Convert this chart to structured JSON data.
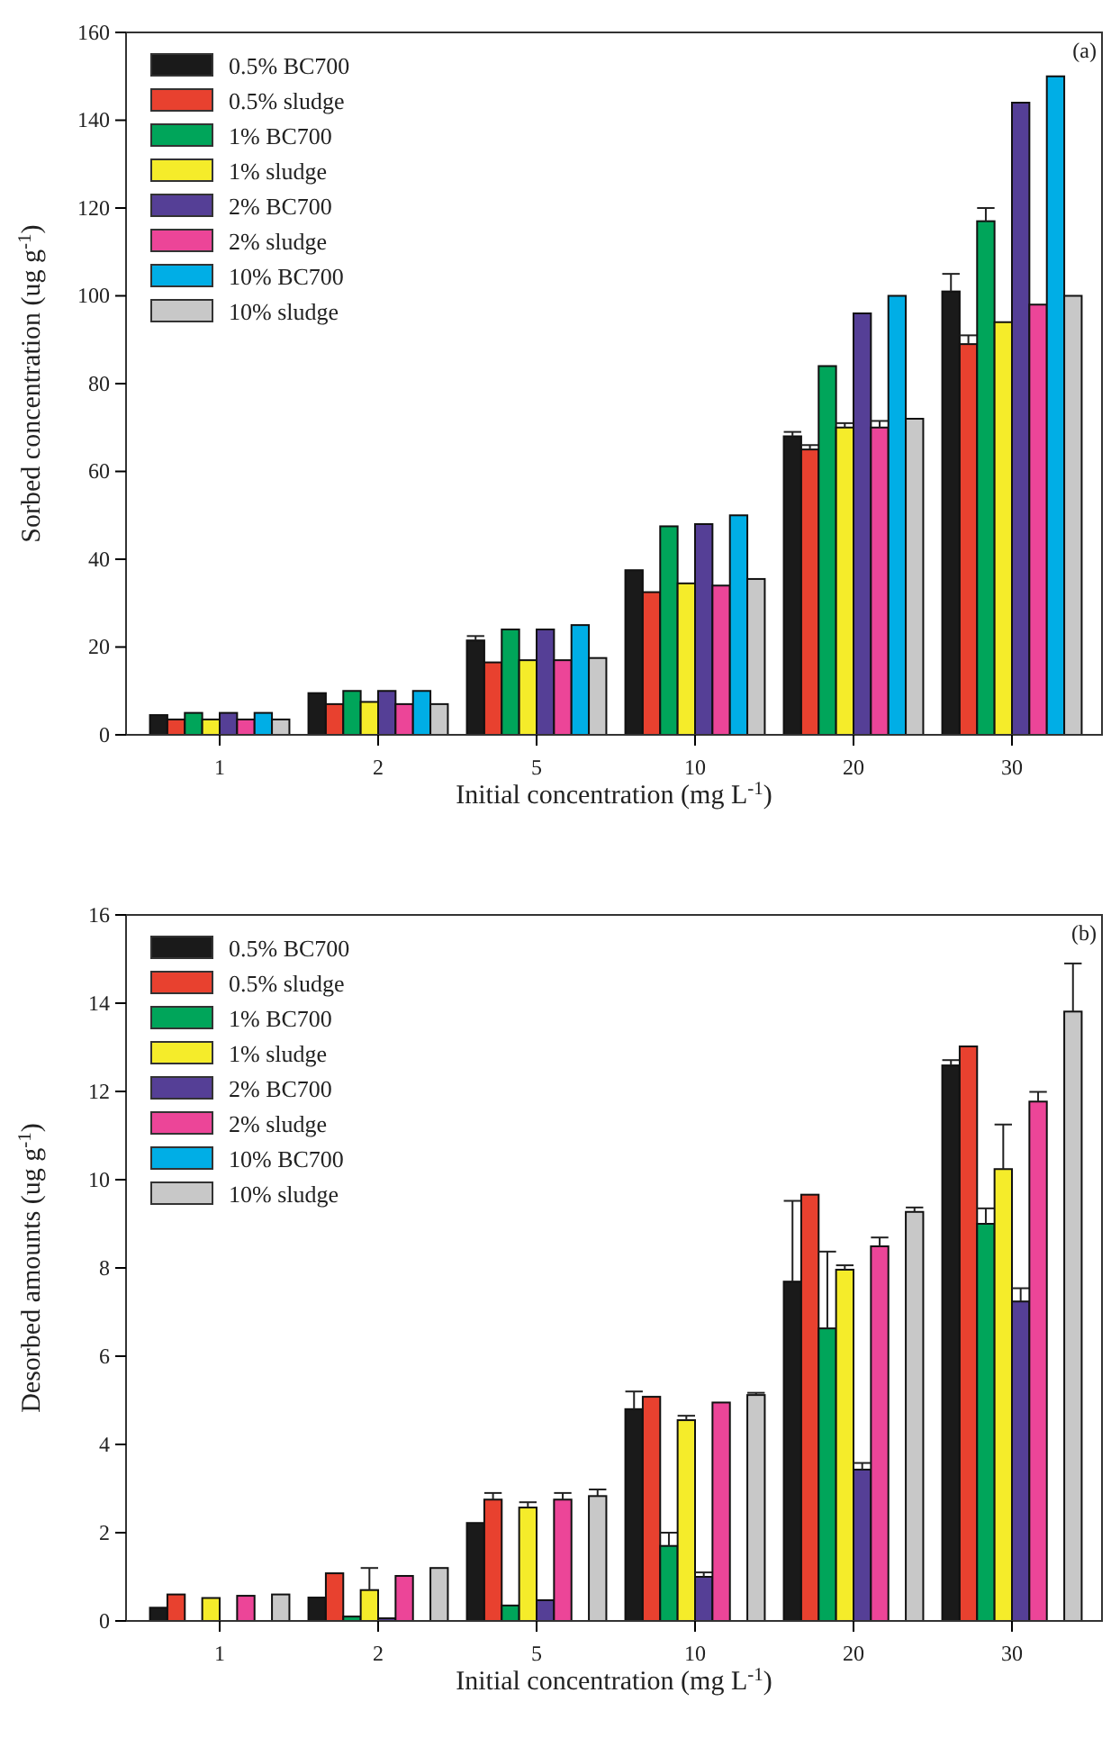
{
  "chart_data": [
    {
      "type": "bar",
      "categories": [
        "1",
        "2",
        "5",
        "10",
        "20",
        "30"
      ],
      "xlabel": "Initial concentration (mg L$^{-1}$)",
      "ylabel": "Sorbed concentration (ug g$^{-1}$)",
      "ylim": [
        0,
        160
      ],
      "yticks": [
        0,
        20,
        40,
        60,
        80,
        100,
        120,
        140,
        160
      ],
      "legend": "top left",
      "grid": false,
      "annotations": [
        "(a)"
      ],
      "series": [
        {
          "name": "0.5% BC700",
          "color": "#1a1a1a",
          "values": [
            4.5,
            9.5,
            21.5,
            37.5,
            68,
            101
          ],
          "errors": [
            null,
            null,
            [
              21.5,
              22.5
            ],
            null,
            [
              68,
              69
            ],
            [
              101,
              105
            ]
          ]
        },
        {
          "name": "0.5% sludge",
          "color": "#e8412f",
          "values": [
            3.5,
            7,
            16.5,
            32.5,
            65,
            89
          ],
          "errors": [
            null,
            null,
            null,
            null,
            [
              65,
              66
            ],
            [
              89,
              91
            ]
          ]
        },
        {
          "name": "1% BC700",
          "color": "#00a55a",
          "values": [
            5,
            10,
            24,
            47.5,
            84,
            117
          ],
          "errors": [
            null,
            null,
            null,
            null,
            null,
            [
              117,
              120
            ]
          ]
        },
        {
          "name": "1% sludge",
          "color": "#f5ec2a",
          "values": [
            3.5,
            7.5,
            17,
            34.5,
            70,
            94
          ],
          "errors": [
            null,
            null,
            null,
            null,
            [
              70,
              71
            ],
            null
          ]
        },
        {
          "name": "2% BC700",
          "color": "#553f96",
          "values": [
            5,
            10,
            24,
            48,
            96,
            144
          ]
        },
        {
          "name": "2% sludge",
          "color": "#ec4598",
          "values": [
            3.5,
            7,
            17,
            34,
            70,
            98
          ],
          "errors": [
            null,
            null,
            null,
            null,
            [
              70,
              71.5
            ],
            null
          ]
        },
        {
          "name": "10% BC700",
          "color": "#00aee6",
          "values": [
            5,
            10,
            25,
            50,
            100,
            150
          ]
        },
        {
          "name": "10% sludge",
          "color": "#c8c8c8",
          "values": [
            3.5,
            7,
            17.5,
            35.5,
            72,
            100
          ]
        }
      ]
    },
    {
      "type": "bar",
      "categories": [
        "1",
        "2",
        "5",
        "10",
        "20",
        "30"
      ],
      "xlabel": "Initial concentration (mg L$^{-1}$)",
      "ylabel": "Desorbed amounts (ug g$^{-1}$)",
      "ylim": [
        0,
        16
      ],
      "yticks": [
        0,
        2,
        4,
        6,
        8,
        10,
        12,
        14,
        16
      ],
      "legend": "top left",
      "grid": false,
      "annotations": [
        "(b)"
      ],
      "series": [
        {
          "name": "0.5% BC700",
          "color": "#1a1a1a",
          "values": [
            0.3,
            0.53,
            2.22,
            4.8,
            7.69,
            12.59
          ],
          "errors": [
            null,
            null,
            null,
            [
              4.8,
              5.2
            ],
            [
              7.69,
              9.52
            ],
            [
              12.59,
              12.71
            ]
          ]
        },
        {
          "name": "0.5% sludge",
          "color": "#e8412f",
          "values": [
            0.6,
            1.08,
            2.75,
            5.08,
            9.66,
            13.02
          ],
          "errors": [
            null,
            null,
            [
              2.75,
              2.9
            ],
            null,
            null,
            null
          ]
        },
        {
          "name": "1% BC700",
          "color": "#00a55a",
          "values": [
            null,
            0.1,
            0.35,
            1.7,
            6.63,
            9.0
          ],
          "errors": [
            null,
            null,
            null,
            [
              1.7,
              2.0
            ],
            [
              6.63,
              8.37
            ],
            [
              9.0,
              9.35
            ]
          ]
        },
        {
          "name": "1% sludge",
          "color": "#f5ec2a",
          "values": [
            0.52,
            0.7,
            2.57,
            4.55,
            7.96,
            10.24
          ],
          "errors": [
            null,
            [
              0.7,
              1.2
            ],
            [
              2.57,
              2.69
            ],
            [
              4.55,
              4.65
            ],
            [
              7.96,
              8.06
            ],
            [
              10.24,
              11.25
            ]
          ]
        },
        {
          "name": "2% BC700",
          "color": "#553f96",
          "values": [
            null,
            0.06,
            0.47,
            1.0,
            3.43,
            7.24
          ],
          "errors": [
            null,
            null,
            null,
            [
              1.0,
              1.1
            ],
            [
              3.43,
              3.58
            ],
            [
              7.24,
              7.54
            ]
          ]
        },
        {
          "name": "2% sludge",
          "color": "#ec4598",
          "values": [
            0.57,
            1.02,
            2.75,
            4.95,
            8.49,
            11.77
          ],
          "errors": [
            null,
            null,
            [
              2.75,
              2.9
            ],
            null,
            [
              8.49,
              8.69
            ],
            [
              11.77,
              11.99
            ]
          ]
        },
        {
          "name": "10% BC700",
          "color": "#00aee6",
          "values": [
            null,
            null,
            null,
            null,
            null,
            null
          ]
        },
        {
          "name": "10% sludge",
          "color": "#c8c8c8",
          "values": [
            0.6,
            1.2,
            2.83,
            5.12,
            9.27,
            13.81
          ],
          "errors": [
            null,
            null,
            [
              2.83,
              2.98
            ],
            [
              5.12,
              5.17
            ],
            [
              9.27,
              9.37
            ],
            [
              13.81,
              14.9
            ]
          ]
        }
      ]
    }
  ]
}
